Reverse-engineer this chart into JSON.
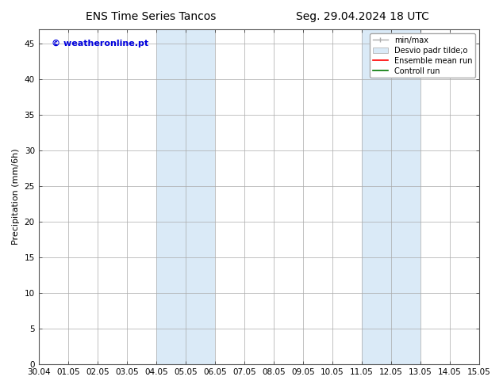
{
  "title_left": "ENS Time Series Tancos",
  "title_right": "Seg. 29.04.2024 18 UTC",
  "ylabel": "Precipitation (mm/6h)",
  "watermark": "© weatheronline.pt",
  "watermark_color": "#0000dd",
  "ylim": [
    0,
    47
  ],
  "yticks": [
    0,
    5,
    10,
    15,
    20,
    25,
    30,
    35,
    40,
    45
  ],
  "xtick_labels": [
    "30.04",
    "01.05",
    "02.05",
    "03.05",
    "04.05",
    "05.05",
    "06.05",
    "07.05",
    "08.05",
    "09.05",
    "10.05",
    "11.05",
    "12.05",
    "13.05",
    "14.05",
    "15.05"
  ],
  "shaded_regions": [
    {
      "xstart": 4,
      "xend": 6,
      "color": "#daeaf7",
      "alpha": 1.0
    },
    {
      "xstart": 11,
      "xend": 13,
      "color": "#daeaf7",
      "alpha": 1.0
    }
  ],
  "background_color": "#ffffff",
  "plot_bg_color": "#ffffff",
  "grid_color": "#aaaaaa",
  "title_fontsize": 10,
  "tick_fontsize": 7.5,
  "ylabel_fontsize": 8,
  "legend_fontsize": 7,
  "watermark_fontsize": 8
}
